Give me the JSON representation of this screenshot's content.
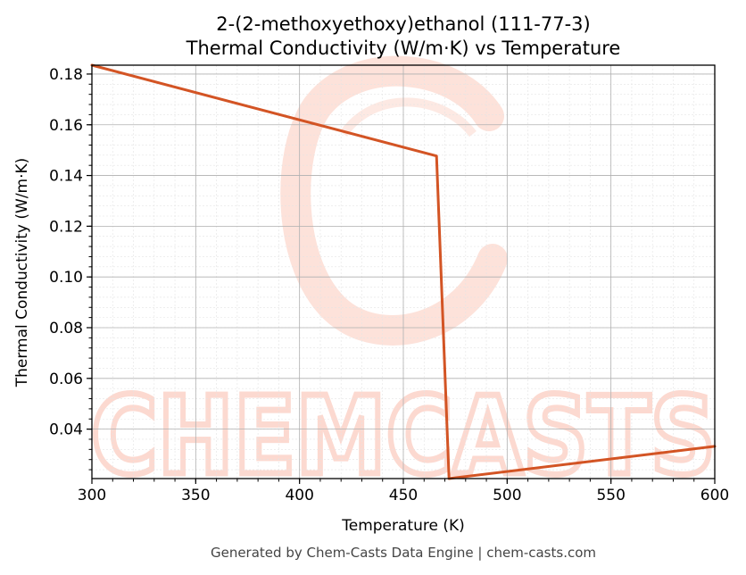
{
  "chart_data": {
    "type": "line",
    "title": "2-(2-methoxyethoxy)ethanol (111-77-3)",
    "subtitle": "Thermal Conductivity (W/m·K) vs Temperature",
    "xlabel": "Temperature (K)",
    "ylabel": "Thermal Conductivity (W/m·K)",
    "xlim": [
      300,
      600
    ],
    "ylim": [
      0.0205,
      0.1835
    ],
    "xticks": [
      300,
      350,
      400,
      450,
      500,
      550,
      600
    ],
    "yticks": [
      0.04,
      0.06,
      0.08,
      0.1,
      0.12,
      0.14,
      0.16,
      0.18
    ],
    "xtick_labels": [
      "300",
      "350",
      "400",
      "450",
      "500",
      "550",
      "600"
    ],
    "ytick_labels": [
      "0.04",
      "0.06",
      "0.08",
      "0.10",
      "0.12",
      "0.14",
      "0.16",
      "0.18"
    ],
    "grid": true,
    "series": [
      {
        "color": "#d35424",
        "x": [
          300,
          466,
          472,
          600
        ],
        "y": [
          0.1835,
          0.1477,
          0.0205,
          0.0332
        ]
      }
    ]
  },
  "watermark": {
    "text": "CHEMCASTS",
    "color": "#fcd9d0"
  },
  "footer": "Generated by Chem-Casts Data Engine | chem-casts.com"
}
